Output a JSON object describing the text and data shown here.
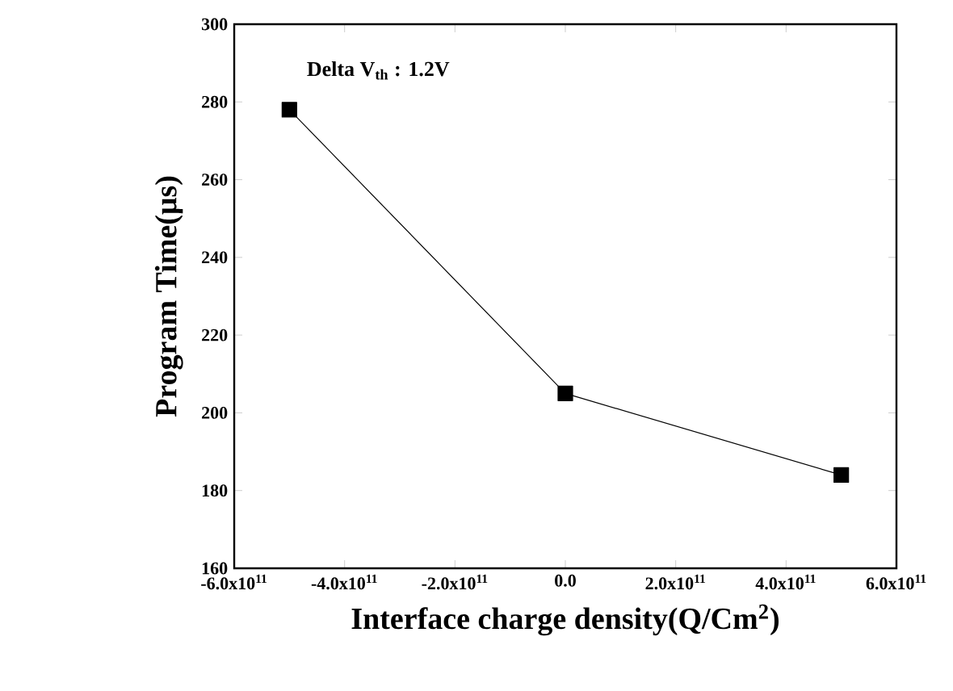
{
  "chart_data": {
    "type": "line",
    "xlabel": "Interface charge density(Q/Cm$^{2}$)",
    "ylabel": "Program Time(μs)",
    "annotations": [
      "Delta V$_{th}$ : 1.2V"
    ],
    "x": [
      -500000000000.0,
      0,
      500000000000.0
    ],
    "series": [
      {
        "color": "#000000",
        "values": [
          278,
          205,
          184
        ]
      }
    ],
    "xlim": [
      -600000000000.0,
      600000000000.0
    ],
    "ylim": [
      160,
      300
    ],
    "xticks": [
      {
        "value": -600000000000.0,
        "label": "-6.0x10$^{11}$"
      },
      {
        "value": -400000000000.0,
        "label": "-4.0x10$^{11}$"
      },
      {
        "value": -200000000000.0,
        "label": "-2.0x10$^{11}$"
      },
      {
        "value": 0,
        "label": "0.0"
      },
      {
        "value": 200000000000.0,
        "label": "2.0x10$^{11}$"
      },
      {
        "value": 400000000000.0,
        "label": "4.0x10$^{11}$"
      },
      {
        "value": 600000000000.0,
        "label": "6.0x10$^{11}$"
      }
    ],
    "yticks": [
      160,
      180,
      200,
      220,
      240,
      260,
      280,
      300
    ],
    "marker": "square",
    "line_style": "solid",
    "grid": false
  }
}
